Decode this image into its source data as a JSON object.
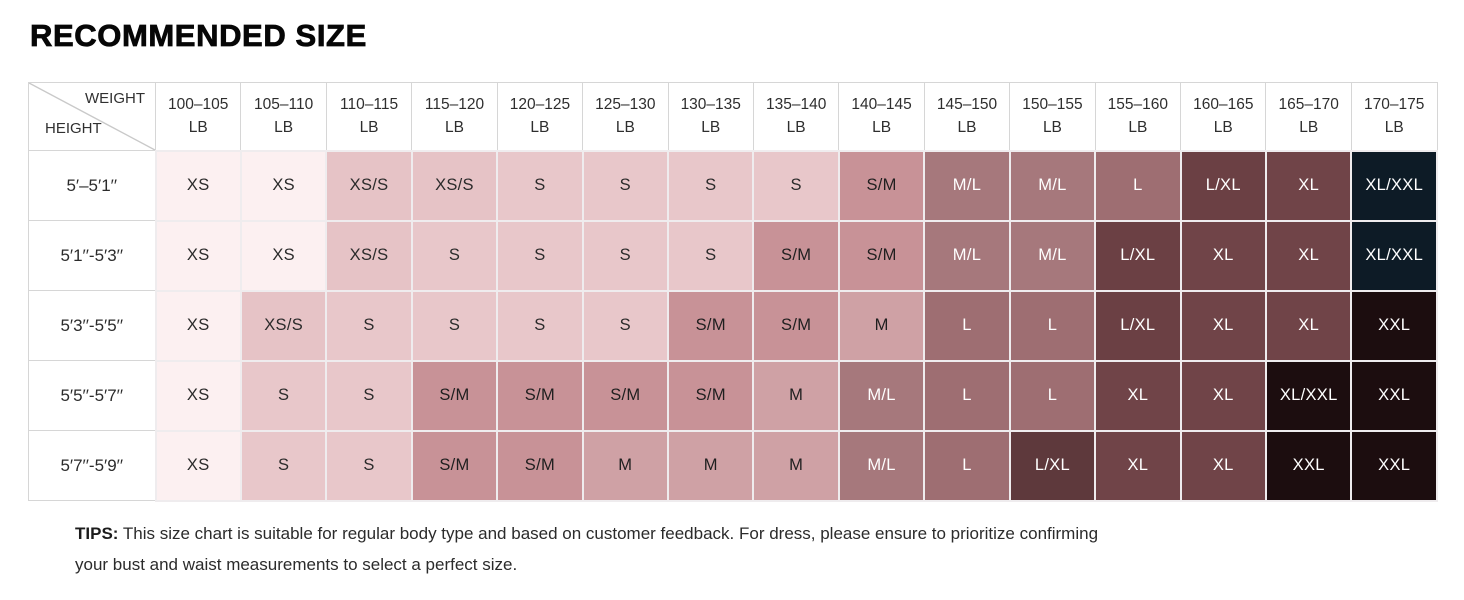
{
  "title": "RECOMMENDED SIZE",
  "chart_data": {
    "type": "table",
    "title": "RECOMMENDED SIZE",
    "corner": {
      "top_right": "WEIGHT",
      "bottom_left": "HEIGHT"
    },
    "weight_unit": "LB",
    "weight_columns": [
      "100–105",
      "105–110",
      "110–115",
      "115–120",
      "120–125",
      "125–130",
      "130–135",
      "135–140",
      "140–145",
      "145–150",
      "150–155",
      "155–160",
      "160–165",
      "165–170",
      "170–175"
    ],
    "height_rows": [
      "5′–5′1′′",
      "5′1′′-5′3′′",
      "5′3′′-5′5′′",
      "5′5′′-5′7′′",
      "5′7′′-5′9′′"
    ],
    "values": [
      [
        "XS",
        "XS",
        "XS/S",
        "XS/S",
        "S",
        "S",
        "S",
        "S",
        "S/M",
        "M/L",
        "M/L",
        "L",
        "L/XL",
        "XL",
        "XL/XXL"
      ],
      [
        "XS",
        "XS",
        "XS/S",
        "S",
        "S",
        "S",
        "S",
        "S/M",
        "S/M",
        "M/L",
        "M/L",
        "L/XL",
        "XL",
        "XL",
        "XL/XXL"
      ],
      [
        "XS",
        "XS/S",
        "S",
        "S",
        "S",
        "S",
        "S/M",
        "S/M",
        "M",
        "L",
        "L",
        "L/XL",
        "XL",
        "XL",
        "XXL"
      ],
      [
        "XS",
        "S",
        "S",
        "S/M",
        "S/M",
        "S/M",
        "S/M",
        "M",
        "M/L",
        "L",
        "L",
        "XL",
        "XL",
        "XL/XXL",
        "XXL"
      ],
      [
        "XS",
        "S",
        "S",
        "S/M",
        "S/M",
        "M",
        "M",
        "M",
        "M/L",
        "L",
        "L/XL",
        "XL",
        "XL",
        "XXL",
        "XXL"
      ]
    ],
    "palette": {
      "XS": {
        "bg": "#fcf0f1",
        "fg": "#2b2b2b"
      },
      "XS/S": {
        "bg": "#e6c3c6",
        "fg": "#2b2b2b"
      },
      "S": {
        "bg": "#e8c7ca",
        "fg": "#2b2b2b"
      },
      "S/M": {
        "bg": "#c89297",
        "fg": "#1f1f1f"
      },
      "M": {
        "bg": "#cfa1a5",
        "fg": "#1f1f1f"
      },
      "M/L": {
        "bg": "#a6787c",
        "fg": "#ffffff"
      },
      "L": {
        "bg": "#9e6e72",
        "fg": "#ffffff"
      },
      "L/XL": {
        "bg": "#6b4044",
        "fg": "#ffffff"
      },
      "XL": {
        "bg": "#704448",
        "fg": "#ffffff"
      },
      "XL/XXL": {
        "bg": "#0d1b26",
        "fg": "#ffffff"
      },
      "XXL": {
        "bg": "#1c0d0f",
        "fg": "#ffffff"
      }
    },
    "cell_overrides": [
      {
        "row": 3,
        "col": 13,
        "bg": "#1c0d0f"
      },
      {
        "row": 4,
        "col": 10,
        "bg": "#5e393c"
      }
    ],
    "grid_line_color": "#d6d6d6",
    "cell_gap_color": "#efecee"
  },
  "tips": {
    "label": "TIPS:",
    "line1": "This size chart is suitable for regular body type and based on customer feedback. For dress, please ensure to prioritize confirming",
    "line2": "your bust and waist measurements to select a perfect size."
  }
}
